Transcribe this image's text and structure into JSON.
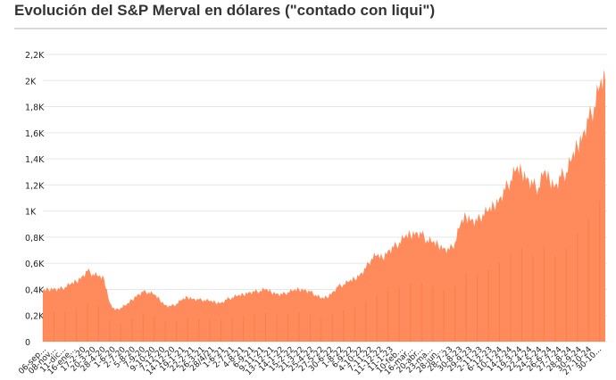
{
  "title": "Evolución del S&P Merval en dólares (\"contado con liqui\")",
  "colors": {
    "area": "#ff8a5b",
    "area_dark": "#f4672c",
    "grid": "#e6e6e6"
  },
  "chart_data": {
    "type": "area",
    "title": "Evolución del S&P Merval en dólares (\"contado con liqui\")",
    "xlabel": "",
    "ylabel": "",
    "ylim": [
      0,
      2200
    ],
    "yticks": [
      {
        "value": 0,
        "label": "0"
      },
      {
        "value": 200,
        "label": "0,2K"
      },
      {
        "value": 400,
        "label": "0,4K"
      },
      {
        "value": 600,
        "label": "0,6K"
      },
      {
        "value": 800,
        "label": "0,8K"
      },
      {
        "value": 1000,
        "label": "1K"
      },
      {
        "value": 1200,
        "label": "1,2K"
      },
      {
        "value": 1400,
        "label": "1,4K"
      },
      {
        "value": 1600,
        "label": "1,6K"
      },
      {
        "value": 1800,
        "label": "1,8K"
      },
      {
        "value": 2000,
        "label": "2K"
      },
      {
        "value": 2200,
        "label": "2,2K"
      }
    ],
    "xtick_labels": [
      "06-sep...",
      "08-nov...",
      "11-dic...",
      "16-ene...",
      "17-2-20",
      "20-3-20",
      "28-4-20",
      "1-6-20",
      "2-7-20",
      "5-8-20",
      "7-9-20",
      "9-10-20",
      "7-12-20",
      "14-12-20",
      "19-1-21",
      "22-2-21",
      "26-3-21",
      "28/4/21",
      "1-6-21",
      "2-7-21",
      "4-8-21",
      "6-9-21",
      "9-11-21",
      "13-12-21",
      "14-1-22",
      "15-2-22",
      "21-3-22",
      "25-4-22",
      "27-5-22",
      "30-6-22",
      "1-8-22",
      "6-9-22",
      "4-10-22",
      "7-11-22",
      "11-12-22",
      "11-1-23",
      "10-feb...",
      "16-mar...",
      "20-abr...",
      "23-ma...",
      "28-jun...",
      "28-7-23",
      "30-8-23",
      "29-9-23",
      "2-11-23",
      "6-12-23",
      "10-1-24",
      "14-2-24",
      "19-3-24",
      "22-4-24",
      "24-5-24",
      "26-6-24",
      "27-7-24",
      "28-8-24",
      "30-9-24",
      "27-10-24",
      "30-10..."
    ],
    "series": [
      {
        "values": [
          390,
          400,
          410,
          400,
          420,
          440,
          460,
          500,
          540,
          520,
          500,
          480,
          300,
          240,
          260,
          280,
          320,
          360,
          380,
          380,
          360,
          320,
          280,
          270,
          290,
          320,
          340,
          330,
          320,
          320,
          310,
          300,
          300,
          320,
          340,
          350,
          360,
          380,
          380,
          390,
          400,
          380,
          370,
          360,
          380,
          390,
          400,
          400,
          380,
          360,
          330,
          340,
          380,
          420,
          440,
          460,
          480,
          520,
          560,
          640,
          660,
          640,
          700,
          720,
          760,
          800,
          820,
          840,
          820,
          780,
          760,
          740,
          720,
          700,
          760,
          900,
          960,
          940,
          920,
          980,
          1000,
          1040,
          1100,
          1160,
          1240,
          1320,
          1300,
          1260,
          1200,
          1180,
          1300,
          1240,
          1200,
          1260,
          1300,
          1400,
          1500,
          1600,
          1700,
          1800,
          1960,
          2000
        ]
      }
    ]
  }
}
